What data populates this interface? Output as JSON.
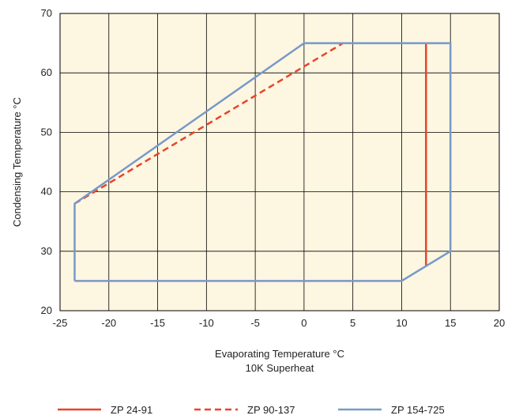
{
  "chart_data": {
    "type": "line",
    "xlabel": "Evaporating Temperature °C",
    "xlabel_line2": "10K Superheat",
    "ylabel": "Condensing Temperature °C",
    "xlim": [
      -25,
      20
    ],
    "ylim": [
      20,
      70
    ],
    "xticks": [
      -25,
      -20,
      -15,
      -10,
      -5,
      0,
      5,
      10,
      15,
      20
    ],
    "yticks": [
      20,
      30,
      40,
      50,
      60,
      70
    ],
    "xtick_labels": [
      "-25",
      "-20",
      "-15",
      "-10",
      "-5",
      "0",
      "5",
      "10",
      "15",
      "20"
    ],
    "ytick_labels": [
      "20",
      "30",
      "40",
      "50",
      "60",
      "70"
    ],
    "grid": true,
    "background": "#fdf6e1",
    "legend_position": "bottom",
    "series": [
      {
        "name": "ZP 24-91",
        "color": "#e8442a",
        "dash": "solid",
        "points": [
          [
            12.5,
            65
          ],
          [
            12.5,
            27.5
          ]
        ]
      },
      {
        "name": "ZP 90-137",
        "color": "#e8442a",
        "dash": "dashed",
        "points": [
          [
            -23.5,
            38
          ],
          [
            4,
            65
          ]
        ]
      },
      {
        "name": "ZP 154-725",
        "color": "#7899c8",
        "dash": "solid",
        "points": [
          [
            -23.5,
            25
          ],
          [
            -23.5,
            38
          ],
          [
            0,
            65
          ],
          [
            15,
            65
          ],
          [
            15,
            30
          ],
          [
            10,
            25
          ],
          [
            -23.5,
            25
          ]
        ]
      }
    ]
  }
}
